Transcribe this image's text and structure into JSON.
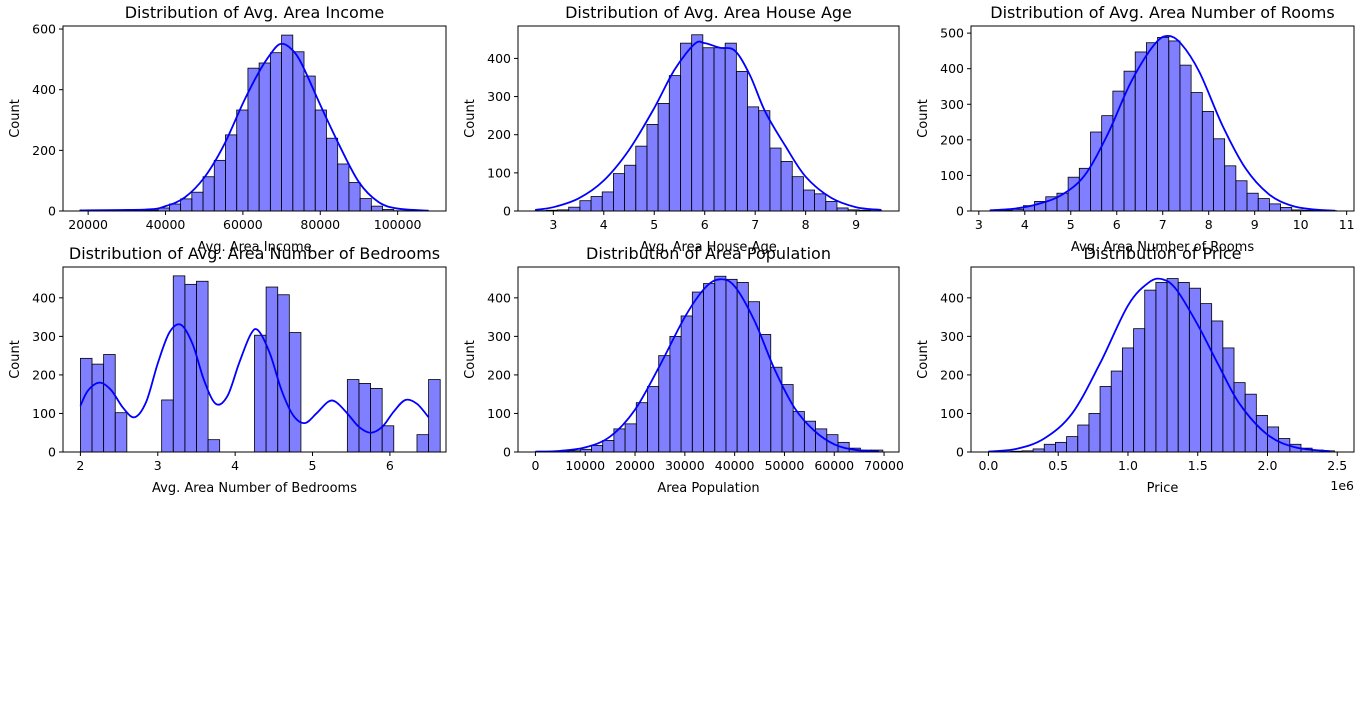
{
  "chart_data": [
    {
      "type": "histogram",
      "title": "Distribution of Avg. Area Income",
      "xlabel": "Avg. Area Income",
      "ylabel": "Count",
      "xlim": [
        13500,
        112500
      ],
      "ylim": [
        0,
        610
      ],
      "xticks": [
        20000,
        40000,
        60000,
        80000,
        100000
      ],
      "yticks": [
        0,
        200,
        400,
        600
      ],
      "offset_label": "",
      "bin_start": 17800,
      "bin_width": 2900,
      "counts": [
        1,
        1,
        1,
        1,
        1,
        2,
        3,
        10,
        23,
        40,
        62,
        113,
        167,
        251,
        333,
        471,
        488,
        522,
        580,
        525,
        445,
        333,
        240,
        155,
        94,
        41,
        16,
        5,
        1,
        1,
        1
      ],
      "bar_color": "#0000ff",
      "bar_alpha": 0.5,
      "kde_color": "#0000ff",
      "kde": {
        "x": [
          17800,
          35000,
          40000,
          45000,
          50000,
          55000,
          60000,
          64000,
          67000,
          69500,
          72000,
          75000,
          80000,
          85000,
          90000,
          95000,
          100000,
          108000
        ],
        "y": [
          2,
          5,
          16,
          45,
          110,
          215,
          355,
          455,
          515,
          550,
          540,
          490,
          350,
          215,
          95,
          30,
          8,
          1
        ]
      }
    },
    {
      "type": "histogram",
      "title": "Distribution of Avg. Area House Age",
      "xlabel": "Avg. Area House Age",
      "ylabel": "Count",
      "xlim": [
        2.3,
        9.85
      ],
      "ylim": [
        0,
        485
      ],
      "xticks": [
        3,
        4,
        5,
        6,
        7,
        8,
        9
      ],
      "yticks": [
        0,
        100,
        200,
        300,
        400
      ],
      "offset_label": "",
      "bin_start": 2.64,
      "bin_width": 0.2215,
      "counts": [
        1,
        2,
        3,
        10,
        27,
        38,
        50,
        98,
        120,
        170,
        227,
        282,
        355,
        440,
        462,
        428,
        428,
        440,
        366,
        273,
        263,
        165,
        130,
        90,
        55,
        45,
        25,
        8,
        3,
        2,
        1
      ],
      "bar_color": "#0000ff",
      "bar_alpha": 0.5,
      "kde_color": "#0000ff",
      "kde": {
        "x": [
          2.64,
          3.0,
          3.5,
          4.0,
          4.5,
          5.0,
          5.4,
          5.8,
          6.0,
          6.3,
          6.6,
          6.9,
          7.2,
          7.6,
          8.0,
          8.5,
          9.0,
          9.5
        ],
        "y": [
          3,
          10,
          33,
          80,
          160,
          270,
          370,
          438,
          440,
          428,
          420,
          355,
          260,
          170,
          90,
          35,
          10,
          3
        ]
      }
    },
    {
      "type": "histogram",
      "title": "Distribution of Avg. Area Number of Rooms",
      "xlabel": "Avg. Area Number of Rooms",
      "ylabel": "Count",
      "xlim": [
        2.83,
        11.16
      ],
      "ylim": [
        0,
        520
      ],
      "xticks": [
        3,
        4,
        5,
        6,
        7,
        8,
        9,
        10,
        11
      ],
      "yticks": [
        0,
        100,
        200,
        300,
        400,
        500
      ],
      "offset_label": "",
      "bin_start": 3.24,
      "bin_width": 0.2432,
      "counts": [
        1,
        2,
        5,
        15,
        27,
        40,
        50,
        95,
        120,
        222,
        268,
        337,
        393,
        447,
        473,
        488,
        478,
        410,
        333,
        280,
        203,
        127,
        85,
        50,
        35,
        20,
        10,
        3,
        2,
        1,
        1
      ],
      "bar_color": "#0000ff",
      "bar_alpha": 0.5,
      "kde_color": "#0000ff",
      "kde": {
        "x": [
          3.24,
          3.8,
          4.3,
          4.8,
          5.3,
          5.8,
          6.3,
          6.8,
          7.1,
          7.4,
          7.8,
          8.3,
          8.8,
          9.3,
          9.8,
          10.3,
          10.75
        ],
        "y": [
          2,
          7,
          20,
          45,
          100,
          215,
          360,
          465,
          492,
          470,
          390,
          240,
          120,
          48,
          15,
          4,
          1
        ]
      }
    },
    {
      "type": "histogram",
      "title": "Distribution of Avg. Area Number of Bedrooms",
      "xlabel": "Avg. Area Number of Bedrooms",
      "ylabel": "Count",
      "xlim": [
        1.775,
        6.725
      ],
      "ylim": [
        0,
        480
      ],
      "xticks": [
        2,
        3,
        4,
        5,
        6
      ],
      "yticks": [
        0,
        100,
        200,
        300,
        400
      ],
      "offset_label": "",
      "bin_start": 2.0,
      "bin_width": 0.15,
      "counts": [
        243,
        228,
        253,
        102,
        0,
        0,
        0,
        135,
        457,
        435,
        443,
        32,
        0,
        0,
        0,
        303,
        428,
        408,
        310,
        0,
        0,
        0,
        0,
        188,
        178,
        165,
        68,
        0,
        0,
        45,
        188
      ],
      "bar_color": "#0000ff",
      "bar_alpha": 0.5,
      "kde_color": "#0000ff",
      "kde": {
        "x": [
          2.0,
          2.1,
          2.25,
          2.4,
          2.55,
          2.7,
          2.85,
          3.0,
          3.15,
          3.3,
          3.45,
          3.6,
          3.75,
          3.9,
          4.05,
          4.2,
          4.3,
          4.45,
          4.6,
          4.75,
          4.9,
          5.05,
          5.2,
          5.3,
          5.45,
          5.6,
          5.75,
          5.9,
          6.05,
          6.2,
          6.35,
          6.5
        ],
        "y": [
          120,
          160,
          180,
          160,
          115,
          90,
          130,
          230,
          310,
          330,
          280,
          185,
          125,
          145,
          230,
          305,
          315,
          255,
          160,
          95,
          75,
          100,
          130,
          130,
          100,
          65,
          50,
          65,
          105,
          135,
          125,
          90
        ]
      }
    },
    {
      "type": "histogram",
      "title": "Distribution of Area Population",
      "xlabel": "Area Population",
      "ylabel": "Count",
      "xlim": [
        -3500,
        73000
      ],
      "ylim": [
        0,
        480
      ],
      "xticks": [
        0,
        10000,
        20000,
        30000,
        40000,
        50000,
        60000,
        70000
      ],
      "yticks": [
        0,
        100,
        200,
        300,
        400
      ],
      "offset_label": "",
      "bin_start": 0,
      "bin_width": 2250,
      "counts": [
        1,
        1,
        2,
        3,
        7,
        17,
        30,
        60,
        73,
        128,
        170,
        250,
        300,
        353,
        415,
        437,
        456,
        448,
        440,
        390,
        305,
        220,
        175,
        105,
        80,
        60,
        45,
        25,
        10,
        5,
        5
      ],
      "bar_color": "#0000ff",
      "bar_alpha": 0.5,
      "kde_color": "#0000ff",
      "kde": {
        "x": [
          0,
          5000,
          10000,
          15000,
          20000,
          25000,
          30000,
          34000,
          37000,
          40000,
          44000,
          48000,
          52000,
          56000,
          60000,
          64000,
          69000
        ],
        "y": [
          1,
          3,
          12,
          40,
          110,
          225,
          350,
          425,
          448,
          430,
          340,
          215,
          115,
          55,
          20,
          6,
          1
        ]
      }
    },
    {
      "type": "histogram",
      "title": "Distribution of Price",
      "xlabel": "Price",
      "ylabel": "Count",
      "xlim": [
        -125000,
        2620000
      ],
      "ylim": [
        0,
        480
      ],
      "xticks": [
        0,
        500000,
        1000000,
        1500000,
        2000000,
        2500000
      ],
      "xtick_labels": [
        "0.0",
        "0.5",
        "1.0",
        "1.5",
        "2.0",
        "2.5"
      ],
      "yticks": [
        0,
        100,
        200,
        300,
        400
      ],
      "offset_label": "1e6",
      "bin_start": 0,
      "bin_width": 80000,
      "counts": [
        1,
        1,
        2,
        3,
        8,
        20,
        25,
        40,
        70,
        100,
        170,
        210,
        270,
        320,
        420,
        440,
        450,
        440,
        425,
        385,
        340,
        270,
        180,
        150,
        95,
        65,
        35,
        20,
        10,
        5,
        3
      ],
      "bar_color": "#0000ff",
      "bar_alpha": 0.5,
      "kde_color": "#0000ff",
      "kde": {
        "x": [
          0,
          200000,
          400000,
          600000,
          800000,
          1000000,
          1150000,
          1250000,
          1350000,
          1500000,
          1650000,
          1800000,
          2000000,
          2200000,
          2450000
        ],
        "y": [
          1,
          8,
          35,
          100,
          230,
          380,
          440,
          448,
          420,
          330,
          225,
          125,
          45,
          12,
          2
        ]
      }
    }
  ]
}
